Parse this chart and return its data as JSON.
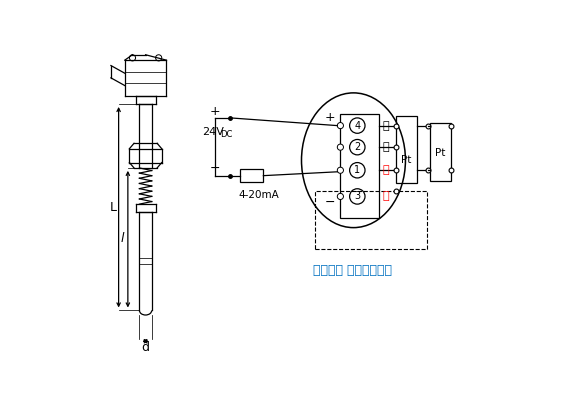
{
  "bg_color": "#ffffff",
  "line_color": "#000000",
  "annotation_color": "#0070c0",
  "annotation_text": "热电阻： 三线或四线制",
  "current_label": "4-20mA",
  "voltage_label": "24V",
  "voltage_sub": "DC",
  "plus_label": "+",
  "minus_label": "−",
  "terminal_labels": [
    "4",
    "2",
    "1",
    "3"
  ],
  "color_white": "白",
  "color_red": "红",
  "pt_label": "Pt",
  "L_label": "L",
  "l_label": "l",
  "d_label": "d"
}
